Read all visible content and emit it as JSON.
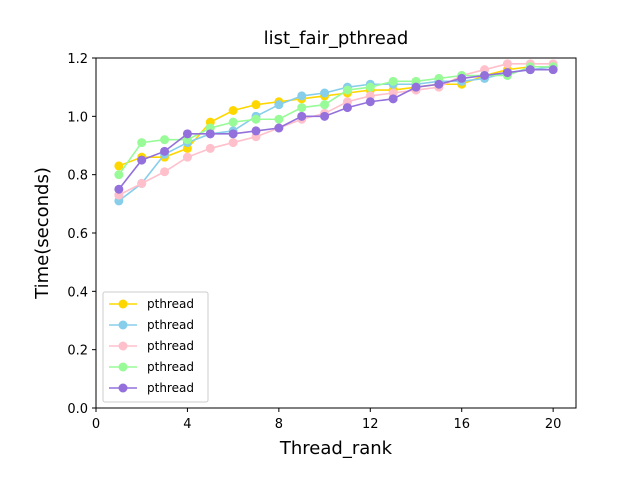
{
  "chart_data": {
    "type": "line",
    "title": "list_fair_pthread",
    "xlabel": "Thread_rank",
    "ylabel": "Time(seconds)",
    "xlim": [
      0,
      21
    ],
    "ylim": [
      0.0,
      1.2
    ],
    "xticks": [
      0,
      4,
      8,
      12,
      16,
      20
    ],
    "yticks": [
      0.0,
      0.2,
      0.4,
      0.6,
      0.8,
      1.0,
      1.2
    ],
    "xtick_labels": [
      "0",
      "4",
      "8",
      "12",
      "16",
      "20"
    ],
    "ytick_labels": [
      "0.0",
      "0.2",
      "0.4",
      "0.6",
      "0.8",
      "1.0",
      "1.2"
    ],
    "grid": false,
    "legend_position": "lower-left",
    "x": [
      1,
      2,
      3,
      4,
      5,
      6,
      7,
      8,
      9,
      10,
      11,
      12,
      13,
      14,
      15,
      16,
      17,
      18,
      19,
      20
    ],
    "series": [
      {
        "name": "pthread",
        "color": "#FFD700",
        "values": [
          0.83,
          0.86,
          0.86,
          0.89,
          0.98,
          1.02,
          1.04,
          1.05,
          1.06,
          1.07,
          1.08,
          1.09,
          1.09,
          1.1,
          1.11,
          1.11,
          1.14,
          1.16,
          1.17,
          1.17
        ]
      },
      {
        "name": "pthread",
        "color": "#87CEEB",
        "values": [
          0.71,
          0.77,
          0.87,
          0.91,
          0.94,
          0.95,
          1.0,
          1.04,
          1.07,
          1.08,
          1.1,
          1.11,
          1.11,
          1.11,
          1.12,
          1.12,
          1.13,
          1.15,
          1.16,
          1.17
        ]
      },
      {
        "name": "pthread",
        "color": "#FFC0CB",
        "values": [
          0.73,
          0.77,
          0.81,
          0.86,
          0.89,
          0.91,
          0.93,
          0.96,
          0.99,
          1.01,
          1.05,
          1.07,
          1.08,
          1.09,
          1.1,
          1.14,
          1.16,
          1.18,
          1.18,
          1.18
        ]
      },
      {
        "name": "pthread",
        "color": "#98FB98",
        "values": [
          0.8,
          0.91,
          0.92,
          0.92,
          0.96,
          0.98,
          0.99,
          0.99,
          1.03,
          1.04,
          1.09,
          1.1,
          1.12,
          1.12,
          1.13,
          1.14,
          1.14,
          1.14,
          1.17,
          1.17
        ]
      },
      {
        "name": "pthread",
        "color": "#9370DB",
        "values": [
          0.75,
          0.85,
          0.88,
          0.94,
          0.94,
          0.94,
          0.95,
          0.96,
          1.0,
          1.0,
          1.03,
          1.05,
          1.06,
          1.1,
          1.11,
          1.13,
          1.14,
          1.15,
          1.16,
          1.16
        ]
      }
    ]
  }
}
